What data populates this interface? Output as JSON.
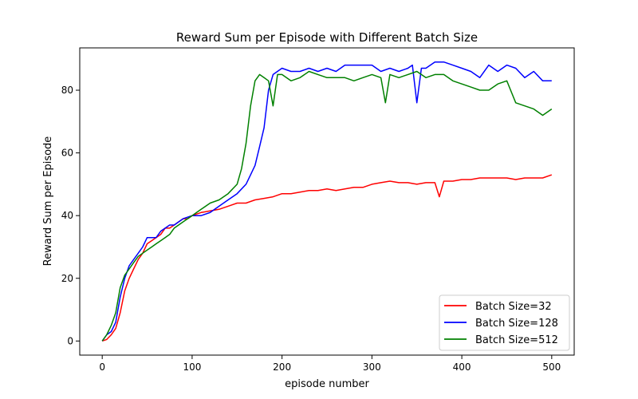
{
  "chart_data": {
    "type": "line",
    "title": "Reward Sum per Episode with Different Batch Size",
    "xlabel": "episode number",
    "ylabel": "Reward Sum per Episode",
    "xlim": [
      -25,
      525
    ],
    "ylim": [
      -4.5,
      93.5
    ],
    "xticks": [
      0,
      100,
      200,
      300,
      400,
      500
    ],
    "yticks": [
      0,
      20,
      40,
      60,
      80
    ],
    "grid": false,
    "legend_position": "lower right",
    "series": [
      {
        "name": "Batch Size=32",
        "color": "#ff0000",
        "x": [
          0,
          5,
          10,
          15,
          20,
          25,
          30,
          35,
          40,
          45,
          50,
          55,
          60,
          65,
          70,
          75,
          80,
          85,
          90,
          95,
          100,
          110,
          120,
          130,
          140,
          150,
          160,
          170,
          180,
          190,
          200,
          210,
          220,
          230,
          240,
          250,
          260,
          270,
          280,
          290,
          300,
          310,
          320,
          330,
          340,
          350,
          360,
          370,
          375,
          380,
          390,
          400,
          410,
          420,
          430,
          440,
          450,
          460,
          470,
          480,
          490,
          500
        ],
        "y": [
          0,
          0.5,
          2,
          4,
          9,
          16,
          20,
          23,
          26,
          28,
          31,
          32,
          33,
          34,
          36,
          36,
          37,
          38,
          39,
          39,
          40,
          41,
          41.5,
          42,
          43,
          44,
          44,
          45,
          45.5,
          46,
          47,
          47,
          47.5,
          48,
          48,
          48.5,
          48,
          48.5,
          49,
          49,
          50,
          50.5,
          51,
          50.5,
          50.5,
          50,
          50.5,
          50.5,
          46,
          51,
          51,
          51.5,
          51.5,
          52,
          52,
          52,
          52,
          51.5,
          52,
          52,
          52,
          53
        ]
      },
      {
        "name": "Batch Size=128",
        "color": "#0000ff",
        "x": [
          0,
          5,
          10,
          15,
          20,
          25,
          30,
          35,
          40,
          45,
          50,
          55,
          60,
          65,
          70,
          75,
          80,
          90,
          100,
          110,
          120,
          130,
          140,
          150,
          160,
          165,
          170,
          175,
          180,
          185,
          190,
          200,
          210,
          220,
          230,
          240,
          250,
          260,
          270,
          280,
          290,
          300,
          310,
          320,
          330,
          340,
          345,
          350,
          355,
          360,
          370,
          380,
          390,
          400,
          410,
          420,
          430,
          440,
          450,
          460,
          470,
          480,
          490,
          500
        ],
        "y": [
          0,
          2,
          3,
          6,
          14,
          20,
          24,
          26,
          28,
          30,
          33,
          33,
          33,
          35,
          36,
          37,
          37,
          39,
          40,
          40,
          41,
          43,
          45,
          47,
          50,
          53,
          56,
          62,
          68,
          80,
          85,
          87,
          86,
          86,
          87,
          86,
          87,
          86,
          88,
          88,
          88,
          88,
          86,
          87,
          86,
          87,
          88,
          76,
          87,
          87,
          89,
          89,
          88,
          87,
          86,
          84,
          88,
          86,
          88,
          87,
          84,
          86,
          83,
          83
        ]
      },
      {
        "name": "Batch Size=512",
        "color": "#008000",
        "x": [
          0,
          5,
          10,
          15,
          20,
          25,
          30,
          35,
          40,
          45,
          50,
          55,
          60,
          65,
          70,
          75,
          80,
          90,
          100,
          110,
          120,
          130,
          140,
          150,
          155,
          160,
          165,
          170,
          175,
          180,
          185,
          190,
          195,
          200,
          210,
          220,
          230,
          240,
          250,
          260,
          270,
          280,
          290,
          300,
          310,
          315,
          320,
          330,
          340,
          350,
          360,
          370,
          380,
          390,
          400,
          410,
          420,
          430,
          440,
          450,
          460,
          470,
          480,
          490,
          500
        ],
        "y": [
          0,
          2,
          5,
          9,
          17,
          21,
          23,
          25,
          27,
          28,
          29,
          30,
          31,
          32,
          33,
          34,
          36,
          38,
          40,
          42,
          44,
          45,
          47,
          50,
          55,
          63,
          75,
          83,
          85,
          84,
          83,
          75,
          85,
          85,
          83,
          84,
          86,
          85,
          84,
          84,
          84,
          83,
          84,
          85,
          84,
          76,
          85,
          84,
          85,
          86,
          84,
          85,
          85,
          83,
          82,
          81,
          80,
          80,
          82,
          83,
          76,
          75,
          74,
          72,
          74
        ]
      }
    ]
  }
}
